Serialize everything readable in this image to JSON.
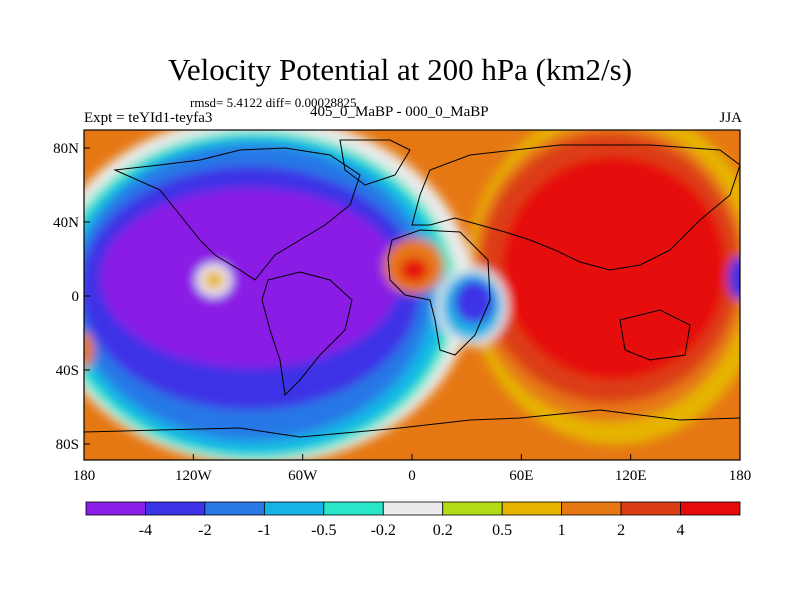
{
  "title": "Velocity Potential at 200 hPa (km2/s)",
  "stats": "rmsd= 5.4122 diff= 0.00028825",
  "experiment": "Expt = teYId1-teyfa3",
  "comparison": "405_0_MaBP - 000_0_MaBP",
  "season": "JJA",
  "lat_ticks": [
    "80N",
    "40N",
    "0",
    "40S",
    "80S"
  ],
  "lon_ticks": [
    "180",
    "120W",
    "60W",
    "0",
    "60E",
    "120E",
    "180"
  ],
  "colorbar": {
    "labels": [
      "-4",
      "-2",
      "-1",
      "-0.5",
      "-0.2",
      "0.2",
      "0.5",
      "1",
      "2",
      "4"
    ],
    "colors": [
      "#8a1ee6",
      "#3c32e6",
      "#2878e6",
      "#14b4e6",
      "#28e6c8",
      "#ebebeb",
      "#b4dc14",
      "#e6b400",
      "#e67814",
      "#dc3c14",
      "#e60a0a"
    ]
  }
}
